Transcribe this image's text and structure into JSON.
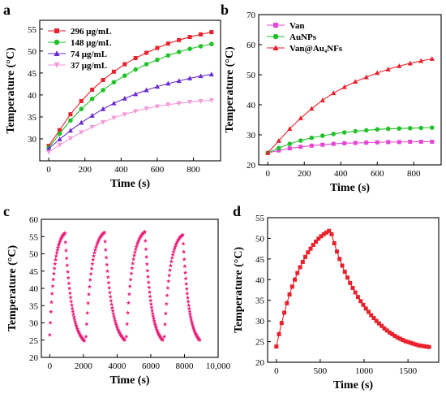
{
  "chart_data": [
    {
      "id": "a",
      "type": "line",
      "panel_label": "a",
      "xlabel": "Time (s)",
      "ylabel": "Temperature (°C)",
      "xlim": [
        -50,
        950
      ],
      "ylim": [
        25,
        57
      ],
      "xticks": [
        0,
        200,
        400,
        600,
        800
      ],
      "yticks": [
        30,
        35,
        40,
        45,
        50,
        55
      ],
      "legend_position": "top-left",
      "series": [
        {
          "name": "296 μg/mL",
          "color": "#e8212b",
          "marker": "square",
          "x": [
            0,
            60,
            120,
            180,
            240,
            300,
            360,
            420,
            480,
            540,
            600,
            660,
            720,
            780,
            840,
            900
          ],
          "y": [
            28.4,
            32.0,
            35.6,
            38.6,
            41.2,
            43.4,
            45.3,
            47.0,
            48.4,
            49.6,
            50.7,
            51.7,
            52.5,
            53.2,
            53.8,
            54.3
          ]
        },
        {
          "name": "148 μg/mL",
          "color": "#22c12a",
          "marker": "circle",
          "x": [
            0,
            60,
            120,
            180,
            240,
            300,
            360,
            420,
            480,
            540,
            600,
            660,
            720,
            780,
            840,
            900
          ],
          "y": [
            28.0,
            31.2,
            34.2,
            36.8,
            39.1,
            41.1,
            42.9,
            44.4,
            45.8,
            47.0,
            48.0,
            49.0,
            49.8,
            50.5,
            51.1,
            51.6
          ]
        },
        {
          "name": "74 μg/mL",
          "color": "#6a2bd0",
          "marker": "triangle-up",
          "x": [
            0,
            60,
            120,
            180,
            240,
            300,
            360,
            420,
            480,
            540,
            600,
            660,
            720,
            780,
            840,
            900
          ],
          "y": [
            27.8,
            29.9,
            31.9,
            33.7,
            35.3,
            36.8,
            38.1,
            39.2,
            40.2,
            41.1,
            41.9,
            42.6,
            43.2,
            43.8,
            44.3,
            44.7
          ]
        },
        {
          "name": "37 μg/mL",
          "color": "#f59ad8",
          "marker": "triangle-down",
          "x": [
            0,
            60,
            120,
            180,
            240,
            300,
            360,
            420,
            480,
            540,
            600,
            660,
            720,
            780,
            840,
            900
          ],
          "y": [
            27.0,
            28.6,
            30.1,
            31.5,
            32.7,
            33.8,
            34.8,
            35.6,
            36.3,
            36.9,
            37.4,
            37.8,
            38.1,
            38.4,
            38.6,
            38.8
          ]
        }
      ]
    },
    {
      "id": "b",
      "type": "line",
      "panel_label": "b",
      "xlabel": "Time (s)",
      "ylabel": "Temperature (°C)",
      "xlim": [
        -50,
        950
      ],
      "ylim": [
        20,
        70
      ],
      "xticks": [
        0,
        200,
        400,
        600,
        800
      ],
      "yticks": [
        20,
        30,
        40,
        50,
        60,
        70
      ],
      "legend_position": "top-left",
      "series": [
        {
          "name": "Van",
          "color": "#e546d6",
          "marker": "square",
          "x": [
            0,
            60,
            120,
            180,
            240,
            300,
            360,
            420,
            480,
            540,
            600,
            660,
            720,
            780,
            840,
            900
          ],
          "y": [
            24.0,
            24.8,
            25.5,
            26.0,
            26.4,
            26.7,
            27.0,
            27.2,
            27.3,
            27.4,
            27.5,
            27.6,
            27.6,
            27.7,
            27.7,
            27.7
          ]
        },
        {
          "name": "AuNPs",
          "color": "#22c12a",
          "marker": "circle",
          "x": [
            0,
            60,
            120,
            180,
            240,
            300,
            360,
            420,
            480,
            540,
            600,
            660,
            720,
            780,
            840,
            900
          ],
          "y": [
            24.0,
            25.6,
            27.0,
            28.1,
            29.0,
            29.7,
            30.3,
            30.8,
            31.2,
            31.5,
            31.8,
            32.0,
            32.1,
            32.2,
            32.3,
            32.4
          ]
        },
        {
          "name": "Van@Au₄NFs",
          "color": "#e8212b",
          "marker": "triangle-up",
          "x": [
            0,
            60,
            120,
            180,
            240,
            300,
            360,
            420,
            480,
            540,
            600,
            660,
            720,
            780,
            840,
            900
          ],
          "y": [
            24.0,
            28.0,
            32.0,
            35.5,
            38.7,
            41.5,
            43.9,
            45.9,
            47.7,
            49.2,
            50.6,
            51.8,
            52.9,
            53.8,
            54.6,
            55.3
          ]
        }
      ]
    },
    {
      "id": "c",
      "type": "scatter",
      "panel_label": "c",
      "xlabel": "Time (s)",
      "ylabel": "Temperature (°C)",
      "xlim": [
        -500,
        10000
      ],
      "ylim": [
        20,
        60
      ],
      "xticks": [
        0,
        2000,
        4000,
        6000,
        8000,
        10000
      ],
      "xtick_labels": [
        "0",
        "2000",
        "4000",
        "6000",
        "8000",
        "10,000"
      ],
      "yticks": [
        20,
        25,
        30,
        35,
        40,
        45,
        50,
        55,
        60
      ],
      "series": [
        {
          "name": "",
          "color": "#e8207a",
          "marker": "star",
          "cycles": [
            {
              "start": 0,
              "heat_end": 900,
              "cool_end": 2050,
              "t0": 26.5,
              "peak": 56.0,
              "min": 24.8
            },
            {
              "start": 2150,
              "heat_end": 3250,
              "cool_end": 4450,
              "t0": 26.0,
              "peak": 56.2,
              "min": 25.0
            },
            {
              "start": 4550,
              "heat_end": 5650,
              "cool_end": 6700,
              "t0": 26.0,
              "peak": 56.4,
              "min": 25.0
            },
            {
              "start": 6800,
              "heat_end": 7900,
              "cool_end": 8900,
              "t0": 26.0,
              "peak": 55.5,
              "min": 25.0
            }
          ]
        }
      ]
    },
    {
      "id": "d",
      "type": "line",
      "panel_label": "d",
      "xlabel": "Time (s)",
      "ylabel": "Temperature (°C)",
      "xlim": [
        -100,
        1850
      ],
      "ylim": [
        20,
        55
      ],
      "xticks": [
        0,
        500,
        1000,
        1500
      ],
      "yticks": [
        20,
        25,
        30,
        35,
        40,
        45,
        50,
        55
      ],
      "series": [
        {
          "name": "",
          "color": "#e8212b",
          "marker": "square",
          "x": [
            0,
            30,
            60,
            90,
            120,
            150,
            180,
            210,
            240,
            270,
            300,
            330,
            360,
            390,
            420,
            450,
            480,
            510,
            540,
            570,
            600,
            630,
            660,
            690,
            720,
            750,
            780,
            810,
            840,
            870,
            900,
            930,
            960,
            990,
            1020,
            1050,
            1080,
            1110,
            1140,
            1170,
            1200,
            1230,
            1260,
            1290,
            1320,
            1350,
            1380,
            1410,
            1440,
            1470,
            1500,
            1530,
            1560,
            1590,
            1620,
            1650,
            1680,
            1710,
            1740
          ],
          "y": [
            23.8,
            26.8,
            29.5,
            32.0,
            34.3,
            36.4,
            38.3,
            40.0,
            41.6,
            43.0,
            44.3,
            45.5,
            46.6,
            47.5,
            48.4,
            49.2,
            49.9,
            50.5,
            51.0,
            51.4,
            51.8,
            51.0,
            48.8,
            46.8,
            45.0,
            43.4,
            41.9,
            40.5,
            39.2,
            38.0,
            36.9,
            35.8,
            34.8,
            33.9,
            33.0,
            32.2,
            31.4,
            30.7,
            30.0,
            29.4,
            28.8,
            28.2,
            27.7,
            27.2,
            26.8,
            26.4,
            26.0,
            25.7,
            25.4,
            25.1,
            24.9,
            24.7,
            24.5,
            24.3,
            24.1,
            24.0,
            23.9,
            23.8,
            23.7
          ]
        }
      ]
    }
  ]
}
